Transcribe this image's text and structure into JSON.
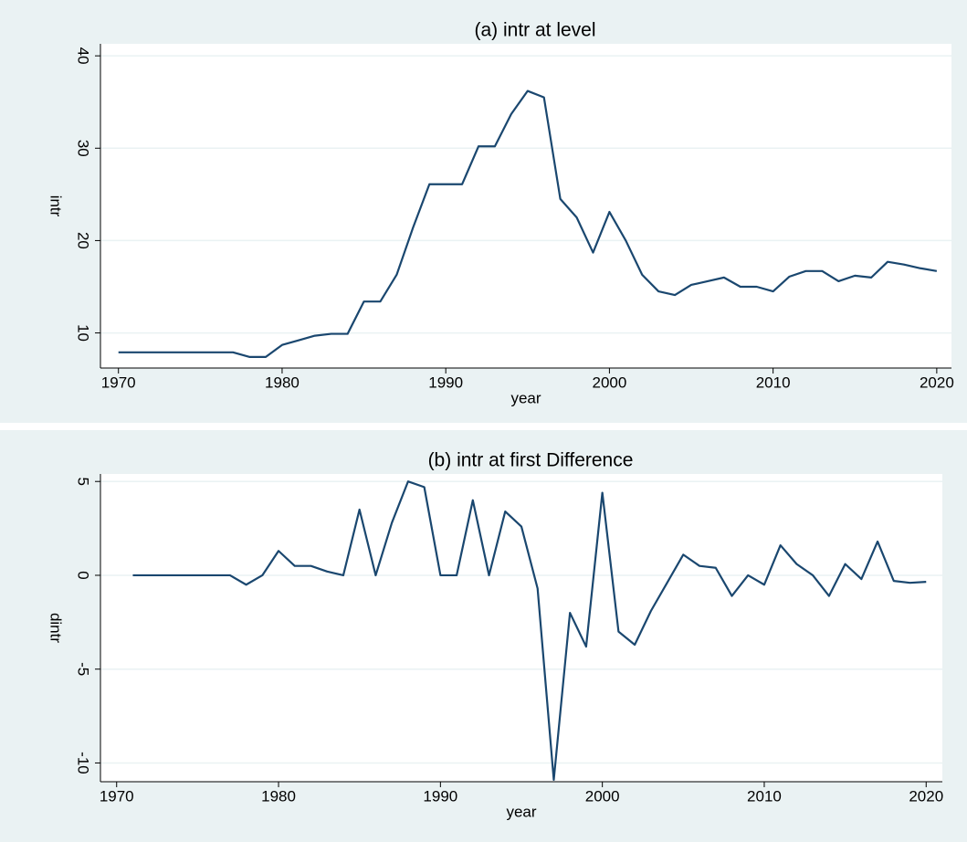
{
  "chart_data": [
    {
      "type": "line",
      "title": "(a) intr at level",
      "x_label": "year",
      "y_label": "intr",
      "x": [
        1970,
        1971,
        1972,
        1973,
        1974,
        1975,
        1976,
        1977,
        1978,
        1979,
        1980,
        1981,
        1982,
        1983,
        1984,
        1985,
        1986,
        1987,
        1988,
        1989,
        1990,
        1991,
        1992,
        1993,
        1994,
        1995,
        1996,
        1997,
        1998,
        1999,
        2000,
        2001,
        2002,
        2003,
        2004,
        2005,
        2006,
        2007,
        2008,
        2009,
        2010,
        2011,
        2012,
        2013,
        2014,
        2015,
        2016,
        2017,
        2018,
        2019,
        2020
      ],
      "values": [
        7.9,
        7.9,
        7.9,
        7.9,
        7.9,
        7.9,
        7.9,
        7.9,
        7.4,
        7.4,
        8.7,
        9.2,
        9.7,
        9.9,
        9.9,
        13.4,
        13.4,
        16.3,
        21.4,
        26.1,
        26.1,
        26.1,
        30.2,
        30.2,
        33.7,
        36.2,
        35.5,
        24.5,
        22.5,
        18.7,
        23.1,
        20,
        16.3,
        14.5,
        14.1,
        15.2,
        15.6,
        16,
        15,
        15,
        14.5,
        16.1,
        16.7,
        16.7,
        15.6,
        16.2,
        16,
        17.7,
        17.4,
        17,
        16.7
      ],
      "color": "#1a476f",
      "xlim": [
        1968.9,
        2020.9
      ],
      "xticks": [
        1970,
        1980,
        1990,
        2000,
        2010,
        2020
      ],
      "ylim": [
        6.2,
        41.3
      ],
      "yticks": [
        10,
        20,
        30,
        40
      ],
      "grid": true
    },
    {
      "type": "line",
      "title": "(b) intr at first Difference",
      "x_label": "year",
      "y_label": "dintr",
      "x": [
        1971,
        1972,
        1973,
        1974,
        1975,
        1976,
        1977,
        1978,
        1979,
        1980,
        1981,
        1982,
        1983,
        1984,
        1985,
        1986,
        1987,
        1988,
        1989,
        1990,
        1991,
        1992,
        1993,
        1994,
        1995,
        1996,
        1997,
        1998,
        1999,
        2000,
        2001,
        2002,
        2003,
        2004,
        2005,
        2006,
        2007,
        2008,
        2009,
        2010,
        2011,
        2012,
        2013,
        2014,
        2015,
        2016,
        2017,
        2018,
        2019,
        2020
      ],
      "values": [
        0,
        0,
        0,
        0,
        0,
        0,
        0,
        -0.5,
        0,
        1.3,
        0.5,
        0.5,
        0.2,
        0,
        3.5,
        0,
        2.8,
        5,
        4.7,
        0,
        0,
        4,
        0,
        3.4,
        2.6,
        -0.7,
        -10.9,
        -2,
        -3.8,
        4.4,
        -3,
        -3.7,
        -1.9,
        -0.4,
        1.1,
        0.5,
        0.4,
        -1.1,
        0,
        -0.5,
        1.6,
        0.6,
        0,
        -1.1,
        0.6,
        -0.2,
        1.8,
        -0.3,
        -0.4,
        -0.35
      ],
      "color": "#1a476f",
      "xlim": [
        1969,
        2021
      ],
      "xticks": [
        1970,
        1980,
        1990,
        2000,
        2010,
        2020
      ],
      "ylim": [
        -11,
        5.4
      ],
      "yticks": [
        -10,
        -5,
        0,
        5
      ],
      "grid": true
    }
  ]
}
